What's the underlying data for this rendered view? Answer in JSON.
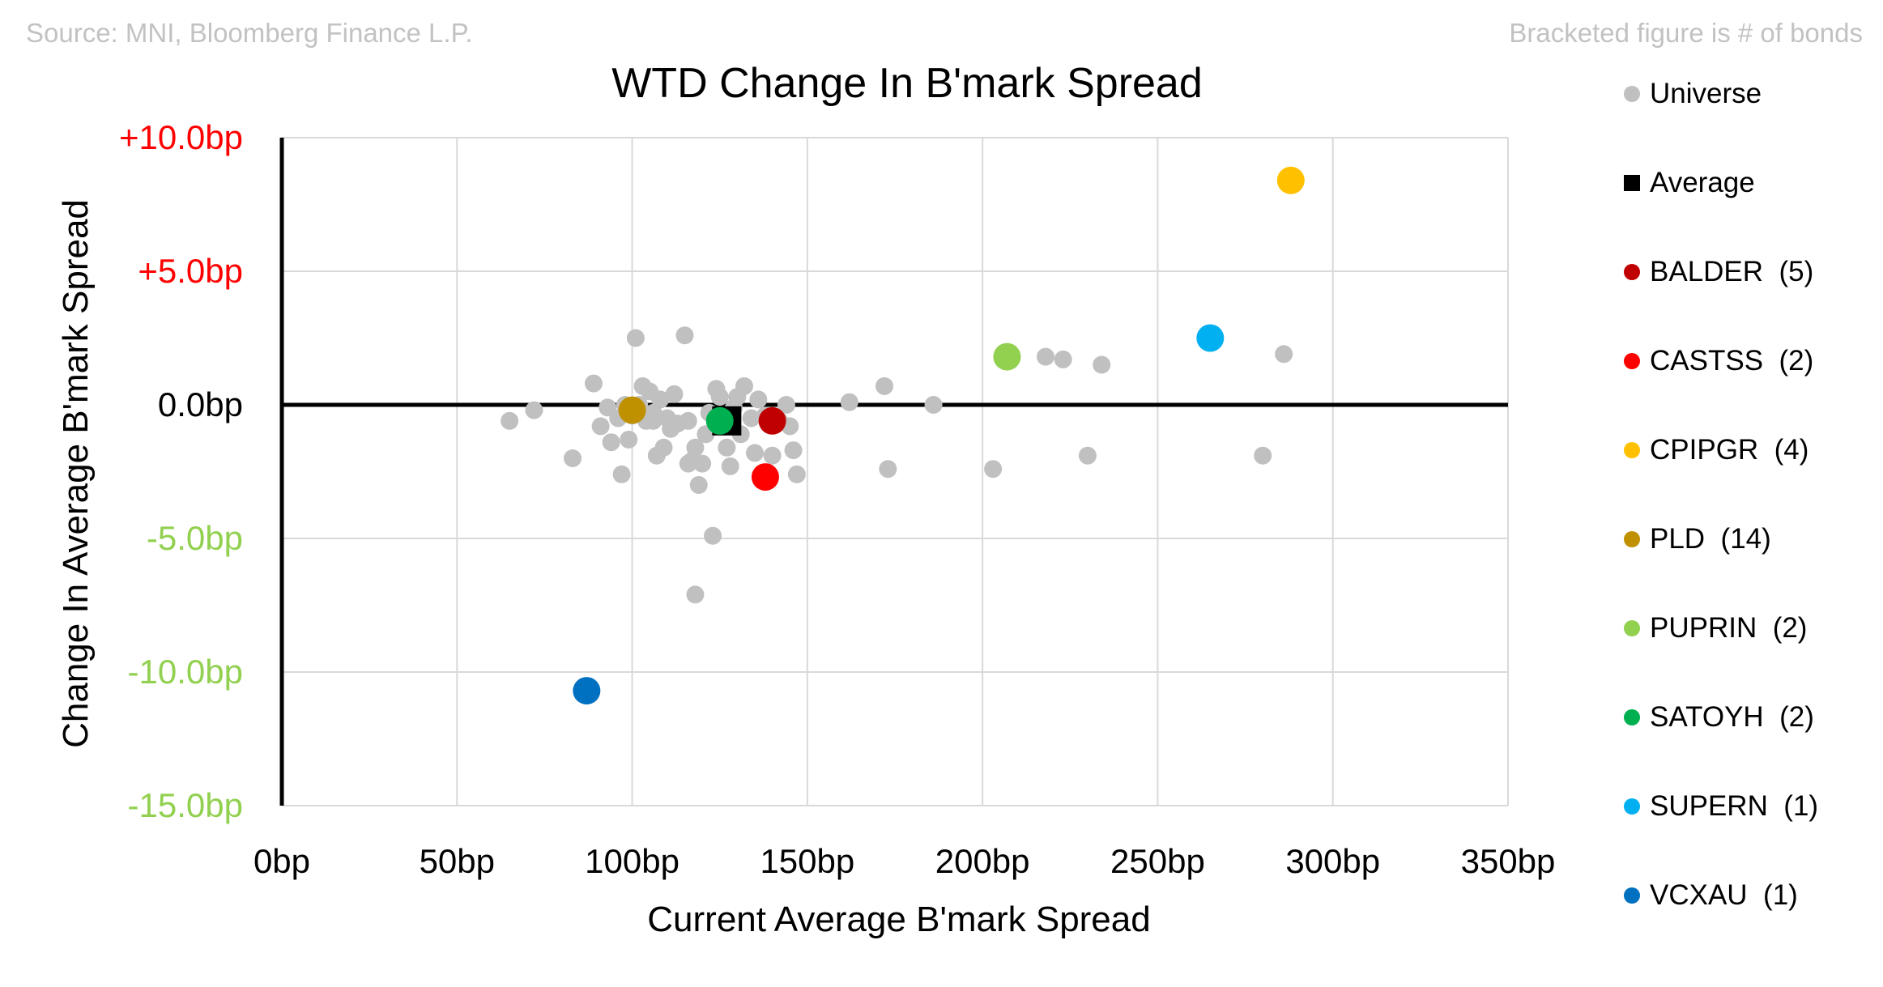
{
  "header": {
    "source": "Source: MNI, Bloomberg Finance L.P.",
    "note": "Bracketed figure is # of bonds"
  },
  "chart_data": {
    "type": "scatter",
    "title": "WTD Change In B'mark Spread",
    "xlabel": "Current Average B'mark Spread",
    "ylabel": "Change In Average B'mark Spread",
    "xlim": [
      0,
      350
    ],
    "ylim": [
      -15,
      10
    ],
    "x_ticks": [
      0,
      50,
      100,
      150,
      200,
      250,
      300,
      350
    ],
    "x_tick_labels": [
      "0bp",
      "50bp",
      "100bp",
      "150bp",
      "200bp",
      "250bp",
      "300bp",
      "350bp"
    ],
    "y_ticks": [
      10,
      5,
      0,
      -5,
      -10,
      -15
    ],
    "y_tick_labels": [
      "+10.0bp",
      "+5.0bp",
      "0.0bp",
      "-5.0bp",
      "-10.0bp",
      "-15.0bp"
    ],
    "y_tick_colors": [
      "#ff0000",
      "#ff0000",
      "#000000",
      "#92d050",
      "#92d050",
      "#92d050"
    ],
    "grid": true,
    "legend_position": "right",
    "series": [
      {
        "name": "Universe",
        "color": "#c0c0c0",
        "marker": "circle",
        "size": "small",
        "points": [
          [
            65,
            -0.6
          ],
          [
            72,
            -0.2
          ],
          [
            83,
            -2.0
          ],
          [
            89,
            0.8
          ],
          [
            91,
            -0.8
          ],
          [
            93,
            -0.1
          ],
          [
            94,
            -1.4
          ],
          [
            96,
            -0.5
          ],
          [
            97,
            -2.6
          ],
          [
            98,
            0.0
          ],
          [
            99,
            -1.3
          ],
          [
            100,
            -0.4
          ],
          [
            101,
            2.5
          ],
          [
            102,
            0.0
          ],
          [
            103,
            0.7
          ],
          [
            104,
            -0.6
          ],
          [
            105,
            0.5
          ],
          [
            106,
            -0.3
          ],
          [
            106,
            -0.6
          ],
          [
            107,
            -1.9
          ],
          [
            108,
            0.2
          ],
          [
            109,
            -1.6
          ],
          [
            110,
            -0.5
          ],
          [
            111,
            -0.9
          ],
          [
            112,
            0.4
          ],
          [
            113,
            -0.7
          ],
          [
            115,
            2.6
          ],
          [
            116,
            -2.2
          ],
          [
            116,
            -0.6
          ],
          [
            117,
            -2.1
          ],
          [
            118,
            -7.1
          ],
          [
            118,
            -1.6
          ],
          [
            119,
            -3.0
          ],
          [
            120,
            -2.2
          ],
          [
            121,
            -1.1
          ],
          [
            122,
            -0.3
          ],
          [
            123,
            -4.9
          ],
          [
            124,
            0.6
          ],
          [
            125,
            0.3
          ],
          [
            127,
            -1.6
          ],
          [
            128,
            -2.3
          ],
          [
            129,
            -0.1
          ],
          [
            130,
            0.3
          ],
          [
            131,
            -1.1
          ],
          [
            132,
            0.7
          ],
          [
            134,
            -0.5
          ],
          [
            135,
            -1.8
          ],
          [
            136,
            0.2
          ],
          [
            138,
            -0.4
          ],
          [
            140,
            -1.9
          ],
          [
            142,
            -0.6
          ],
          [
            144,
            0.0
          ],
          [
            145,
            -0.8
          ],
          [
            146,
            -1.7
          ],
          [
            147,
            -2.6
          ],
          [
            162,
            0.1
          ],
          [
            172,
            0.7
          ],
          [
            173,
            -2.4
          ],
          [
            186,
            0.0
          ],
          [
            203,
            -2.4
          ],
          [
            218,
            1.8
          ],
          [
            223,
            1.7
          ],
          [
            230,
            -1.9
          ],
          [
            234,
            1.5
          ],
          [
            280,
            -1.9
          ],
          [
            286,
            1.9
          ]
        ]
      },
      {
        "name": "Average",
        "color": "#000000",
        "marker": "square",
        "points": [
          [
            127,
            -0.6
          ]
        ]
      },
      {
        "name": "BALDER",
        "bonds": 5,
        "color": "#c00000",
        "marker": "circle",
        "points": [
          [
            140,
            -0.6
          ]
        ]
      },
      {
        "name": "CASTSS",
        "bonds": 2,
        "color": "#ff0000",
        "marker": "circle",
        "points": [
          [
            138,
            -2.7
          ]
        ]
      },
      {
        "name": "CPIPGR",
        "bonds": 4,
        "color": "#ffc000",
        "marker": "circle",
        "points": [
          [
            288,
            8.4
          ]
        ]
      },
      {
        "name": "PLD",
        "bonds": 14,
        "color": "#bf9000",
        "marker": "circle",
        "points": [
          [
            100,
            -0.2
          ]
        ]
      },
      {
        "name": "PUPRIN",
        "bonds": 2,
        "color": "#92d050",
        "marker": "circle",
        "points": [
          [
            207,
            1.8
          ]
        ]
      },
      {
        "name": "SATOYH",
        "bonds": 2,
        "color": "#00b050",
        "marker": "circle",
        "points": [
          [
            125,
            -0.6
          ]
        ]
      },
      {
        "name": "SUPERN",
        "bonds": 1,
        "color": "#00b0f0",
        "marker": "circle",
        "points": [
          [
            265,
            2.5
          ]
        ]
      },
      {
        "name": "VCXAU",
        "bonds": 1,
        "color": "#0070c0",
        "marker": "circle",
        "points": [
          [
            87,
            -10.7
          ]
        ]
      }
    ]
  },
  "legend": {
    "items": [
      {
        "label": "Universe",
        "color": "#c0c0c0",
        "marker": "circle"
      },
      {
        "label": "Average",
        "color": "#000000",
        "marker": "square"
      },
      {
        "label": "BALDER  (5)",
        "color": "#c00000",
        "marker": "circle"
      },
      {
        "label": "CASTSS  (2)",
        "color": "#ff0000",
        "marker": "circle"
      },
      {
        "label": "CPIPGR  (4)",
        "color": "#ffc000",
        "marker": "circle"
      },
      {
        "label": "PLD  (14)",
        "color": "#bf9000",
        "marker": "circle"
      },
      {
        "label": "PUPRIN  (2)",
        "color": "#92d050",
        "marker": "circle"
      },
      {
        "label": "SATOYH  (2)",
        "color": "#00b050",
        "marker": "circle"
      },
      {
        "label": "SUPERN  (1)",
        "color": "#00b0f0",
        "marker": "circle"
      },
      {
        "label": "VCXAU  (1)",
        "color": "#0070c0",
        "marker": "circle"
      }
    ]
  }
}
